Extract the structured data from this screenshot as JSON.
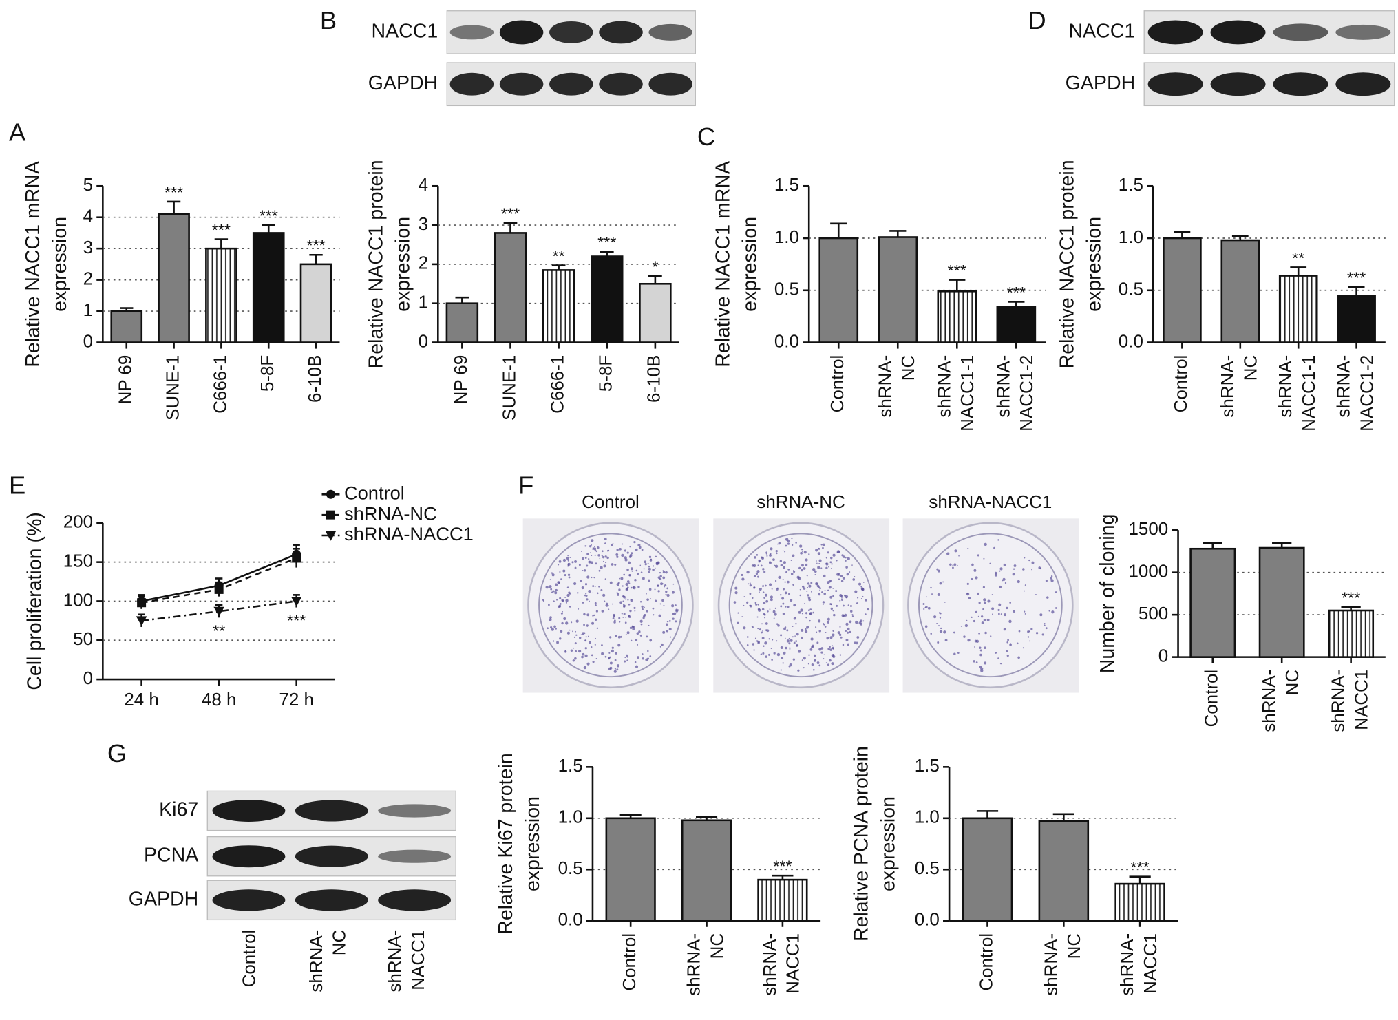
{
  "panels": [
    "A",
    "B",
    "C",
    "D",
    "E",
    "F",
    "G"
  ],
  "blots": {
    "B": {
      "rows": [
        "NACC1",
        "GAPDH"
      ]
    },
    "D": {
      "rows": [
        "NACC1",
        "GAPDH"
      ]
    },
    "G": {
      "rows": [
        "Ki67",
        "PCNA",
        "GAPDH"
      ],
      "lanes": [
        [
          "Control"
        ],
        [
          "shRNA-",
          "NC"
        ],
        [
          "shRNA-",
          "NACC1"
        ]
      ]
    }
  },
  "colony_titles": [
    "Control",
    "shRNA-NC",
    "shRNA-NACC1"
  ],
  "chart_data": [
    {
      "type": "bar",
      "y_label": [
        "Relative NACC1 mRNA",
        "expression"
      ],
      "categories": [
        "NP 69",
        "SUNE-1",
        "C666-1",
        "5-8F",
        "6-10B"
      ],
      "values": [
        1.0,
        4.1,
        3.0,
        3.5,
        2.5
      ],
      "errors": [
        0.1,
        0.4,
        0.3,
        0.25,
        0.3
      ],
      "annotations": [
        null,
        "***",
        "***",
        "***",
        "***"
      ],
      "colors": [
        "#7f7f7f",
        "#7f7f7f",
        "#ffffff",
        "#111111",
        "#d4d4d4"
      ],
      "hatched": [
        false,
        false,
        true,
        false,
        false
      ],
      "ylim": [
        0,
        5
      ],
      "yticks": [
        0,
        1,
        2,
        3,
        4,
        5
      ],
      "grid": true
    },
    {
      "type": "bar",
      "y_label": [
        "Relative NACC1 protein",
        "expression"
      ],
      "categories": [
        "NP 69",
        "SUNE-1",
        "C666-1",
        "5-8F",
        "6-10B"
      ],
      "values": [
        1.0,
        2.8,
        1.85,
        2.2,
        1.5
      ],
      "errors": [
        0.15,
        0.25,
        0.12,
        0.12,
        0.2
      ],
      "annotations": [
        null,
        "***",
        "**",
        "***",
        "*"
      ],
      "colors": [
        "#7f7f7f",
        "#7f7f7f",
        "#ffffff",
        "#111111",
        "#d4d4d4"
      ],
      "hatched": [
        false,
        false,
        true,
        false,
        false
      ],
      "ylim": [
        0,
        4
      ],
      "yticks": [
        0,
        1,
        2,
        3,
        4
      ],
      "grid": true
    },
    {
      "type": "bar",
      "y_label": [
        "Relative NACC1 mRNA",
        "expression"
      ],
      "categories": [
        [
          "Control"
        ],
        [
          "shRNA-",
          "NC"
        ],
        [
          "shRNA-",
          "NACC1-1"
        ],
        [
          "shRNA-",
          "NACC1-2"
        ]
      ],
      "values": [
        1.0,
        1.01,
        0.49,
        0.34
      ],
      "errors": [
        0.14,
        0.06,
        0.11,
        0.05
      ],
      "annotations": [
        null,
        null,
        "***",
        "***"
      ],
      "colors": [
        "#7f7f7f",
        "#7f7f7f",
        "#ffffff",
        "#111111"
      ],
      "hatched": [
        false,
        false,
        true,
        false
      ],
      "ylim": [
        0,
        1.5
      ],
      "yticks": [
        {
          "value": 0,
          "label": "0.0"
        },
        0.5,
        {
          "value": 1,
          "label": "1.0"
        },
        1.5
      ],
      "grid": true
    },
    {
      "type": "bar",
      "y_label": [
        "Relative NACC1 protein",
        "expression"
      ],
      "categories": [
        [
          "Control"
        ],
        [
          "shRNA-",
          "NC"
        ],
        [
          "shRNA-",
          "NACC1-1"
        ],
        [
          "shRNA-",
          "NACC1-2"
        ]
      ],
      "values": [
        1.0,
        0.98,
        0.64,
        0.45
      ],
      "errors": [
        0.06,
        0.04,
        0.08,
        0.08
      ],
      "annotations": [
        null,
        null,
        "**",
        "***"
      ],
      "colors": [
        "#7f7f7f",
        "#7f7f7f",
        "#ffffff",
        "#111111"
      ],
      "hatched": [
        false,
        false,
        true,
        false
      ],
      "ylim": [
        0,
        1.5
      ],
      "yticks": [
        {
          "value": 0,
          "label": "0.0"
        },
        0.5,
        {
          "value": 1,
          "label": "1.0"
        },
        1.5
      ],
      "grid": true
    },
    {
      "type": "line",
      "y_label": [
        "Cell proliferation (%)"
      ],
      "categories": [
        "24 h",
        "48 h",
        "72 h"
      ],
      "series": [
        {
          "name": "Control",
          "color": "#111111",
          "marker": "circle",
          "dash": "solid",
          "values": [
            100,
            120,
            160
          ],
          "errors": [
            8,
            9,
            12
          ]
        },
        {
          "name": "shRNA-NC",
          "color": "#111111",
          "marker": "square",
          "dash": "dashed",
          "values": [
            98,
            115,
            155
          ],
          "errors": [
            8,
            9,
            12
          ]
        },
        {
          "name": "shRNA-NACC1",
          "color": "#111111",
          "marker": "triangle",
          "dash": "dashdot",
          "values": [
            75,
            87,
            100
          ],
          "errors": [
            8,
            8,
            8
          ],
          "annotations": [
            null,
            "**",
            "***"
          ]
        }
      ],
      "ylim": [
        0,
        200
      ],
      "yticks": [
        0,
        50,
        100,
        150,
        200
      ],
      "grid": true,
      "legend": "top-right"
    },
    {
      "type": "bar",
      "y_label": [
        "Number of cloning"
      ],
      "categories": [
        [
          "Control"
        ],
        [
          "shRNA-",
          "NC"
        ],
        [
          "shRNA-",
          "NACC1"
        ]
      ],
      "values": [
        1280,
        1290,
        550
      ],
      "errors": [
        70,
        60,
        40
      ],
      "annotations": [
        null,
        null,
        "***"
      ],
      "colors": [
        "#7f7f7f",
        "#7f7f7f",
        "#ffffff"
      ],
      "hatched": [
        false,
        false,
        true
      ],
      "ylim": [
        0,
        1500
      ],
      "yticks": [
        0,
        500,
        1000,
        1500
      ],
      "grid": true
    },
    {
      "type": "bar",
      "y_label": [
        "Relative Ki67 protein",
        "expression"
      ],
      "categories": [
        [
          "Control"
        ],
        [
          "shRNA-",
          "NC"
        ],
        [
          "shRNA-",
          "NACC1"
        ]
      ],
      "values": [
        1.0,
        0.98,
        0.4
      ],
      "errors": [
        0.03,
        0.03,
        0.04
      ],
      "annotations": [
        null,
        null,
        "***"
      ],
      "colors": [
        "#7f7f7f",
        "#7f7f7f",
        "#ffffff"
      ],
      "hatched": [
        false,
        false,
        true
      ],
      "ylim": [
        0,
        1.5
      ],
      "yticks": [
        {
          "value": 0,
          "label": "0.0"
        },
        0.5,
        {
          "value": 1,
          "label": "1.0"
        },
        1.5
      ],
      "grid": true
    },
    {
      "type": "bar",
      "y_label": [
        "Relative PCNA protein",
        "expression"
      ],
      "categories": [
        [
          "Control"
        ],
        [
          "shRNA-",
          "NC"
        ],
        [
          "shRNA-",
          "NACC1"
        ]
      ],
      "values": [
        1.0,
        0.97,
        0.36
      ],
      "errors": [
        0.07,
        0.07,
        0.07
      ],
      "annotations": [
        null,
        null,
        "***"
      ],
      "colors": [
        "#7f7f7f",
        "#7f7f7f",
        "#ffffff"
      ],
      "hatched": [
        false,
        false,
        true
      ],
      "ylim": [
        0,
        1.5
      ],
      "yticks": [
        {
          "value": 0,
          "label": "0.0"
        },
        0.5,
        {
          "value": 1,
          "label": "1.0"
        },
        1.5
      ],
      "grid": true
    }
  ]
}
